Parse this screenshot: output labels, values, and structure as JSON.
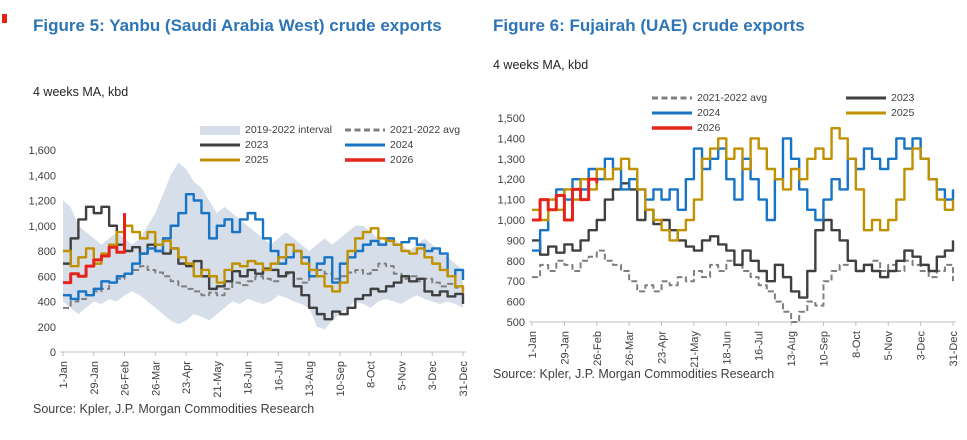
{
  "accent": {
    "title_color": "#2e75b6",
    "axis_text_color": "#404040",
    "axis_line_color": "#bfbfbf",
    "marker_color": "#e5231b"
  },
  "figures": [
    {
      "title": "Figure 5: Yanbu (Saudi Arabia West) crude exports",
      "subtitle": "4 weeks MA, kbd",
      "source": "Source: Kpler, J.P. Morgan Commodities Research"
    },
    {
      "title": "Figure 6: Fujairah (UAE) crude exports",
      "subtitle": "4 weeks MA, kbd",
      "source": "Source: Kpler, J.P. Morgan Commodities Research"
    }
  ],
  "chart_data": [
    {
      "type": "line",
      "title": "Figure 5: Yanbu (Saudi Arabia West) crude exports",
      "subtitle": "4 weeks MA, kbd",
      "ylim": [
        0,
        1600
      ],
      "y_tick_values": [
        0,
        200,
        400,
        600,
        800,
        1000,
        1200,
        1400,
        1600
      ],
      "y_tick_labels": [
        "0",
        "200",
        "400",
        "600",
        "800",
        "1,000",
        "1,200",
        "1,400",
        "1,600"
      ],
      "x_tick_weeks": [
        0,
        4,
        8,
        12,
        16,
        20,
        24,
        28,
        32,
        36,
        40,
        44,
        48,
        52
      ],
      "x_tick_labels": [
        "1-Jan",
        "29-Jan",
        "26-Feb",
        "26-Mar",
        "23-Apr",
        "21-May",
        "18-Jun",
        "16-Jul",
        "13-Aug",
        "10-Sep",
        "8-Oct",
        "5-Nov",
        "3-Dec",
        "31-Dec"
      ],
      "band": {
        "name": "2019-2022 interval",
        "color": "#d6deea",
        "top": [
          1200,
          1150,
          1000,
          950,
          900,
          850,
          900,
          950,
          900,
          850,
          900,
          1000,
          1100,
          1250,
          1400,
          1500,
          1450,
          1350,
          1300,
          1200,
          1100,
          1150,
          1100,
          1050,
          1000,
          950,
          900,
          850,
          900,
          950,
          900,
          850,
          800,
          850,
          900,
          850,
          900,
          950,
          1000,
          1000,
          950,
          900,
          850,
          900,
          850,
          800,
          850,
          900,
          850,
          800,
          750,
          700,
          650
        ],
        "bottom": [
          400,
          350,
          300,
          350,
          400,
          380,
          420,
          400,
          450,
          480,
          450,
          400,
          350,
          300,
          250,
          220,
          250,
          300,
          280,
          250,
          300,
          350,
          400,
          380,
          420,
          400,
          380,
          400,
          450,
          430,
          400,
          380,
          350,
          200,
          180,
          250,
          300,
          350,
          400,
          380,
          350,
          400,
          420,
          400,
          380,
          420,
          450,
          420,
          400,
          380,
          400,
          380,
          350
        ]
      },
      "series": [
        {
          "name": "2021-2022 avg",
          "color": "#7f7f7f",
          "dash": true,
          "width": 2,
          "values": [
            350,
            400,
            420,
            450,
            480,
            500,
            550,
            580,
            620,
            650,
            680,
            650,
            630,
            600,
            560,
            520,
            500,
            480,
            450,
            470,
            450,
            500,
            550,
            530,
            560,
            600,
            580,
            560,
            600,
            620,
            580,
            550,
            600,
            650,
            620,
            580,
            600,
            630,
            650,
            620,
            650,
            700,
            680,
            620,
            580,
            600,
            560,
            580,
            550,
            520,
            540,
            510,
            490
          ]
        },
        {
          "name": "2023",
          "color": "#404040",
          "dash": false,
          "width": 2.4,
          "values": [
            700,
            900,
            1050,
            1150,
            1100,
            1150,
            1000,
            850,
            800,
            830,
            780,
            850,
            800,
            780,
            820,
            700,
            680,
            720,
            600,
            500,
            520,
            560,
            640,
            600,
            650,
            620,
            660,
            650,
            600,
            630,
            520,
            450,
            350,
            300,
            260,
            320,
            300,
            350,
            420,
            450,
            500,
            480,
            520,
            550,
            600,
            560,
            580,
            480,
            450,
            480,
            440,
            460,
            380
          ]
        },
        {
          "name": "2024",
          "color": "#1874c4",
          "dash": false,
          "width": 2.4,
          "values": [
            450,
            420,
            480,
            450,
            500,
            560,
            550,
            600,
            620,
            700,
            780,
            820,
            800,
            900,
            1000,
            1100,
            1250,
            1200,
            1100,
            900,
            1000,
            1050,
            950,
            1050,
            1100,
            1050,
            900,
            800,
            700,
            750,
            800,
            750,
            600,
            700,
            750,
            550,
            700,
            750,
            800,
            850,
            880,
            850,
            900,
            850,
            870,
            900,
            850,
            800,
            820,
            780,
            600,
            650,
            570
          ]
        },
        {
          "name": "2025",
          "color": "#c09100",
          "dash": false,
          "width": 2.4,
          "values": [
            800,
            680,
            750,
            820,
            700,
            780,
            850,
            950,
            1000,
            950,
            900,
            950,
            850,
            880,
            820,
            750,
            700,
            600,
            650,
            600,
            550,
            650,
            700,
            680,
            720,
            700,
            650,
            700,
            750,
            850,
            800,
            700,
            650,
            600,
            520,
            480,
            550,
            800,
            900,
            950,
            980,
            900,
            880,
            850,
            800,
            780,
            820,
            750,
            700,
            650,
            600,
            520,
            470
          ]
        },
        {
          "name": "2026",
          "color": "#e5231b",
          "dash": false,
          "width": 3,
          "values": [
            550,
            620,
            600,
            680,
            730,
            760,
            830,
            790,
            1100
          ]
        }
      ],
      "legend": {
        "columns": [
          [
            "2019-2022 interval",
            "2023",
            "2025"
          ],
          [
            "2021-2022 avg",
            "2024",
            "2026"
          ]
        ]
      }
    },
    {
      "type": "line",
      "title": "Figure 6: Fujairah (UAE) crude exports",
      "subtitle": "4 weeks MA, kbd",
      "ylim": [
        500,
        1500
      ],
      "y_tick_values": [
        500,
        600,
        700,
        800,
        900,
        1000,
        1100,
        1200,
        1300,
        1400,
        1500
      ],
      "y_tick_labels": [
        "500",
        "600",
        "700",
        "800",
        "900",
        "1,000",
        "1,100",
        "1,200",
        "1,300",
        "1,400",
        "1,500"
      ],
      "x_tick_weeks": [
        0,
        4,
        8,
        12,
        16,
        20,
        24,
        28,
        32,
        36,
        40,
        44,
        48,
        52
      ],
      "x_tick_labels": [
        "1-Jan",
        "29-Jan",
        "26-Feb",
        "26-Mar",
        "23-Apr",
        "21-May",
        "18-Jun",
        "16-Jul",
        "13-Aug",
        "10-Sep",
        "8-Oct",
        "5-Nov",
        "3-Dec",
        "31-Dec"
      ],
      "series": [
        {
          "name": "2021-2022 avg",
          "color": "#7f7f7f",
          "dash": true,
          "width": 2,
          "values": [
            720,
            780,
            750,
            800,
            780,
            750,
            800,
            820,
            850,
            800,
            780,
            750,
            700,
            650,
            680,
            650,
            700,
            680,
            720,
            700,
            750,
            720,
            780,
            750,
            800,
            780,
            750,
            720,
            680,
            650,
            600,
            550,
            500,
            550,
            600,
            580,
            700,
            750,
            780,
            800,
            750,
            780,
            800,
            750,
            780,
            750,
            800,
            780,
            750,
            720,
            750,
            780,
            700
          ]
        },
        {
          "name": "2023",
          "color": "#404040",
          "dash": false,
          "width": 2.4,
          "values": [
            900,
            830,
            870,
            840,
            880,
            850,
            900,
            950,
            1000,
            1100,
            1150,
            1180,
            1150,
            1000,
            1050,
            980,
            1000,
            950,
            900,
            870,
            850,
            900,
            920,
            880,
            850,
            780,
            850,
            800,
            750,
            700,
            780,
            720,
            650,
            620,
            750,
            950,
            1000,
            950,
            900,
            800,
            750,
            780,
            750,
            720,
            750,
            800,
            850,
            820,
            780,
            750,
            820,
            850,
            900
          ]
        },
        {
          "name": "2024",
          "color": "#1874c4",
          "dash": false,
          "width": 2.4,
          "values": [
            850,
            950,
            1050,
            1150,
            1100,
            1200,
            1150,
            1250,
            1200,
            1300,
            1250,
            1150,
            1200,
            1150,
            1100,
            1150,
            1100,
            1150,
            1050,
            1200,
            1350,
            1250,
            1300,
            1350,
            1200,
            1100,
            1300,
            1200,
            1100,
            1000,
            1200,
            1400,
            1300,
            1150,
            1050,
            1000,
            1100,
            1200,
            1150,
            1300,
            1250,
            1350,
            1300,
            1250,
            1300,
            1400,
            1350,
            1400,
            1300,
            1200,
            1150,
            1100,
            1150
          ]
        },
        {
          "name": "2025",
          "color": "#c09100",
          "dash": false,
          "width": 2.4,
          "values": [
            1050,
            1000,
            1100,
            1050,
            1150,
            1100,
            1200,
            1150,
            1250,
            1200,
            1250,
            1300,
            1250,
            1150,
            1050,
            1000,
            950,
            900,
            950,
            1000,
            1100,
            1300,
            1350,
            1400,
            1300,
            1350,
            1250,
            1400,
            1350,
            1250,
            1200,
            1150,
            1250,
            1200,
            1300,
            1350,
            1300,
            1450,
            1400,
            1300,
            1150,
            950,
            1000,
            950,
            1000,
            1100,
            1250,
            1350,
            1300,
            1200,
            1100,
            1050,
            1100
          ]
        },
        {
          "name": "2026",
          "color": "#e5231b",
          "dash": false,
          "width": 3,
          "values": [
            1000,
            1100,
            1050,
            1120,
            1000,
            1150,
            1100,
            1200,
            1180
          ]
        }
      ],
      "legend": {
        "columns": [
          [
            "2021-2022 avg",
            "2024",
            "2026"
          ],
          [
            "2023",
            "2025"
          ]
        ]
      }
    }
  ]
}
